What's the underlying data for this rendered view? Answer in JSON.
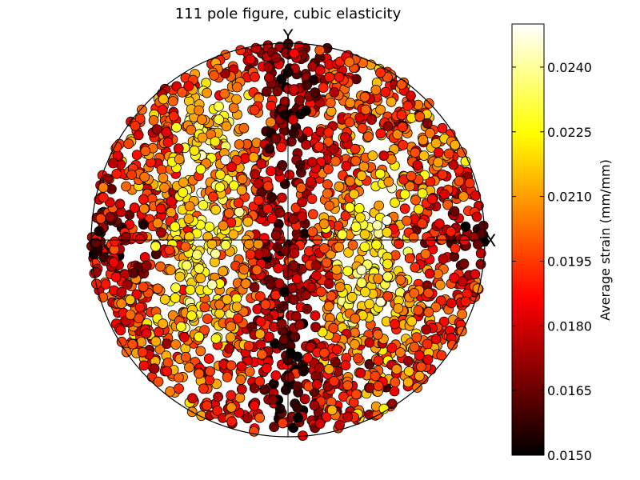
{
  "chart_data": {
    "type": "scatter",
    "title": "111 pole figure, cubic elasticity",
    "projection": "pole figure (unit circle)",
    "x_axis_label": "X",
    "y_axis_label": "Y",
    "xlim": [
      -1,
      1
    ],
    "ylim": [
      -1,
      1
    ],
    "colorbar": {
      "label": "Average strain (mm/mm)",
      "colormap": "hot",
      "range": [
        0.015,
        0.025
      ],
      "ticks": [
        "0.0240",
        "0.0225",
        "0.0210",
        "0.0195",
        "0.0180",
        "0.0165",
        "0.0150"
      ],
      "tick_values": [
        0.024,
        0.0225,
        0.021,
        0.0195,
        0.018,
        0.0165,
        0.015
      ]
    },
    "point_count": 2200,
    "marker_edge_color": "#000000",
    "series": [
      {
        "points_sample": [
          {
            "x": -0.05,
            "y": 0.02,
            "strain": 0.0172
          },
          {
            "x": 0.85,
            "y": 0.02,
            "strain": 0.0158
          },
          {
            "x": -0.45,
            "y": -0.12,
            "strain": 0.0242
          },
          {
            "x": 0.42,
            "y": -0.18,
            "strain": 0.0236
          },
          {
            "x": 0.0,
            "y": 0.95,
            "strain": 0.019
          },
          {
            "x": -0.95,
            "y": 0.1,
            "strain": 0.0162
          },
          {
            "x": 0.2,
            "y": 0.55,
            "strain": 0.0205
          },
          {
            "x": -0.3,
            "y": 0.6,
            "strain": 0.0235
          }
        ]
      }
    ]
  }
}
